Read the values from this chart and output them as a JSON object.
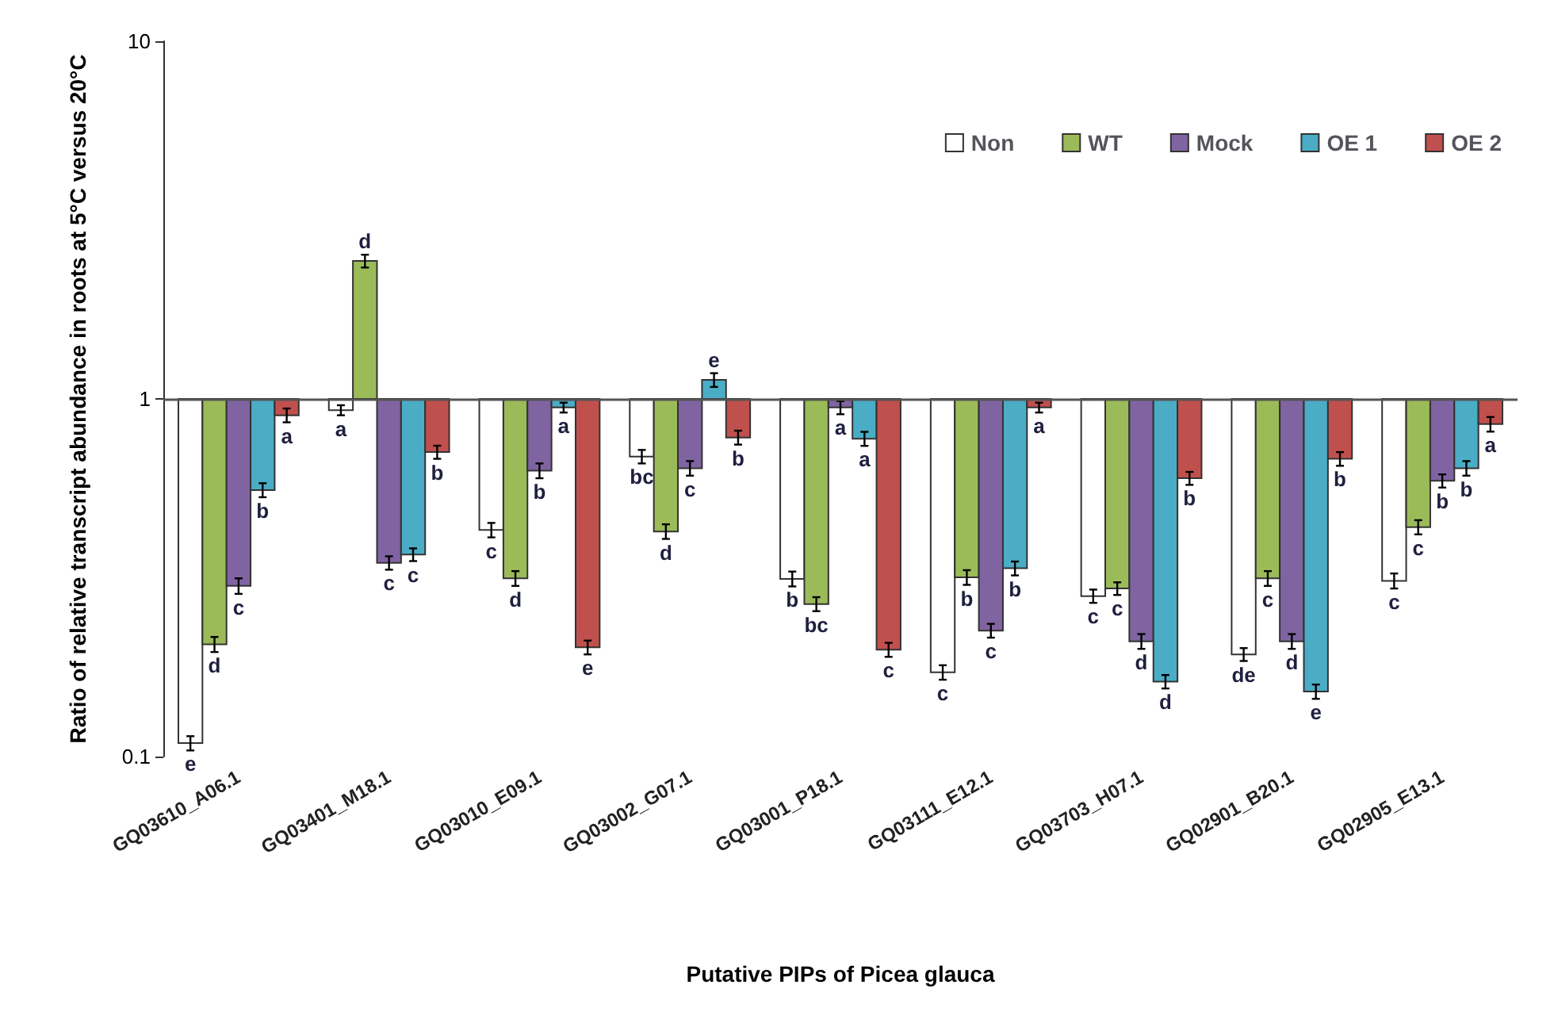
{
  "chart_data": {
    "type": "bar",
    "xlabel": "Putative PIPs of Picea glauca",
    "ylabel": "Ratio of relative transcript abundance in roots at 5°C versus 20°C",
    "categories": [
      "GQ03610_A06.1",
      "GQ03401_M18.1",
      "GQ03010_E09.1",
      "GQ03002_G07.1",
      "GQ03001_P18.1",
      "GQ03111_E12.1",
      "GQ03703_H07.1",
      "GQ02901_B20.1",
      "GQ02905_E13.1"
    ],
    "series": [
      {
        "name": "Non",
        "color": "#ffffff",
        "base": [
          1,
          1,
          1,
          1,
          1,
          1,
          1,
          1,
          1
        ],
        "values": [
          -0.891,
          -0.07,
          -0.57,
          -0.31,
          -0.686,
          -0.828,
          -0.719,
          -0.807,
          -0.69
        ],
        "errors": [
          0.005,
          0.03,
          0.02,
          0.03,
          0.015,
          0.008,
          0.012,
          0.008,
          0.015
        ],
        "value_labels": [
          "e",
          "a",
          "c",
          "bc",
          "b",
          "c",
          "c",
          "de",
          "c"
        ]
      },
      {
        "name": "WT",
        "color": "#9bbb59",
        "base": [
          1,
          1,
          1,
          1,
          1,
          1,
          1,
          1,
          1
        ],
        "values": [
          -0.794,
          1.43,
          -0.685,
          -0.574,
          -0.733,
          -0.683,
          -0.705,
          -0.685,
          -0.562
        ],
        "errors": [
          0.01,
          0.1,
          0.015,
          0.02,
          0.012,
          0.015,
          0.012,
          0.015,
          0.02
        ],
        "value_labels": [
          "d",
          "d",
          "d",
          "d",
          "bc",
          "b",
          "c",
          "c",
          "c"
        ]
      },
      {
        "name": "Mock",
        "color": "#8064a2",
        "base": [
          1,
          1,
          1,
          1,
          1,
          1,
          1,
          1,
          1
        ],
        "values": [
          -0.7,
          -0.652,
          -0.37,
          -0.36,
          -0.054,
          -0.775,
          -0.79,
          -0.79,
          -0.41
        ],
        "errors": [
          0.015,
          0.015,
          0.03,
          0.03,
          0.04,
          0.01,
          0.01,
          0.01,
          0.025
        ],
        "value_labels": [
          "c",
          "c",
          "b",
          "c",
          "a",
          "c",
          "d",
          "d",
          "b"
        ]
      },
      {
        "name": "OE 1",
        "color": "#4bacc6",
        "base": [
          1,
          1,
          1,
          1,
          1,
          1,
          1,
          1,
          1
        ],
        "values": [
          -0.444,
          -0.633,
          -0.054,
          0.13,
          -0.226,
          -0.664,
          -0.838,
          -0.848,
          -0.36
        ],
        "errors": [
          0.025,
          0.015,
          0.03,
          0.05,
          0.035,
          0.015,
          0.007,
          0.007,
          0.03
        ],
        "value_labels": [
          "b",
          "c",
          "a",
          "e",
          "a",
          "b",
          "d",
          "e",
          "b"
        ]
      },
      {
        "name": "OE 2",
        "color": "#c0504d",
        "base": [
          1,
          1,
          1,
          1,
          1,
          1,
          1,
          1,
          1
        ],
        "values": [
          -0.1,
          -0.29,
          -0.798,
          -0.22,
          -0.801,
          -0.054,
          -0.4,
          -0.32,
          -0.15
        ],
        "errors": [
          0.04,
          0.03,
          0.009,
          0.035,
          0.009,
          0.03,
          0.025,
          0.03,
          0.04
        ],
        "value_labels": [
          "a",
          "b",
          "e",
          "b",
          "c",
          "a",
          "b",
          "b",
          "a"
        ]
      }
    ],
    "ylim": [
      0.1,
      10
    ],
    "yticks": [
      0.1,
      1,
      10
    ],
    "log": true,
    "legend": "top right",
    "ref_lines": [
      {
        "axis": "y",
        "value": 1
      }
    ]
  }
}
